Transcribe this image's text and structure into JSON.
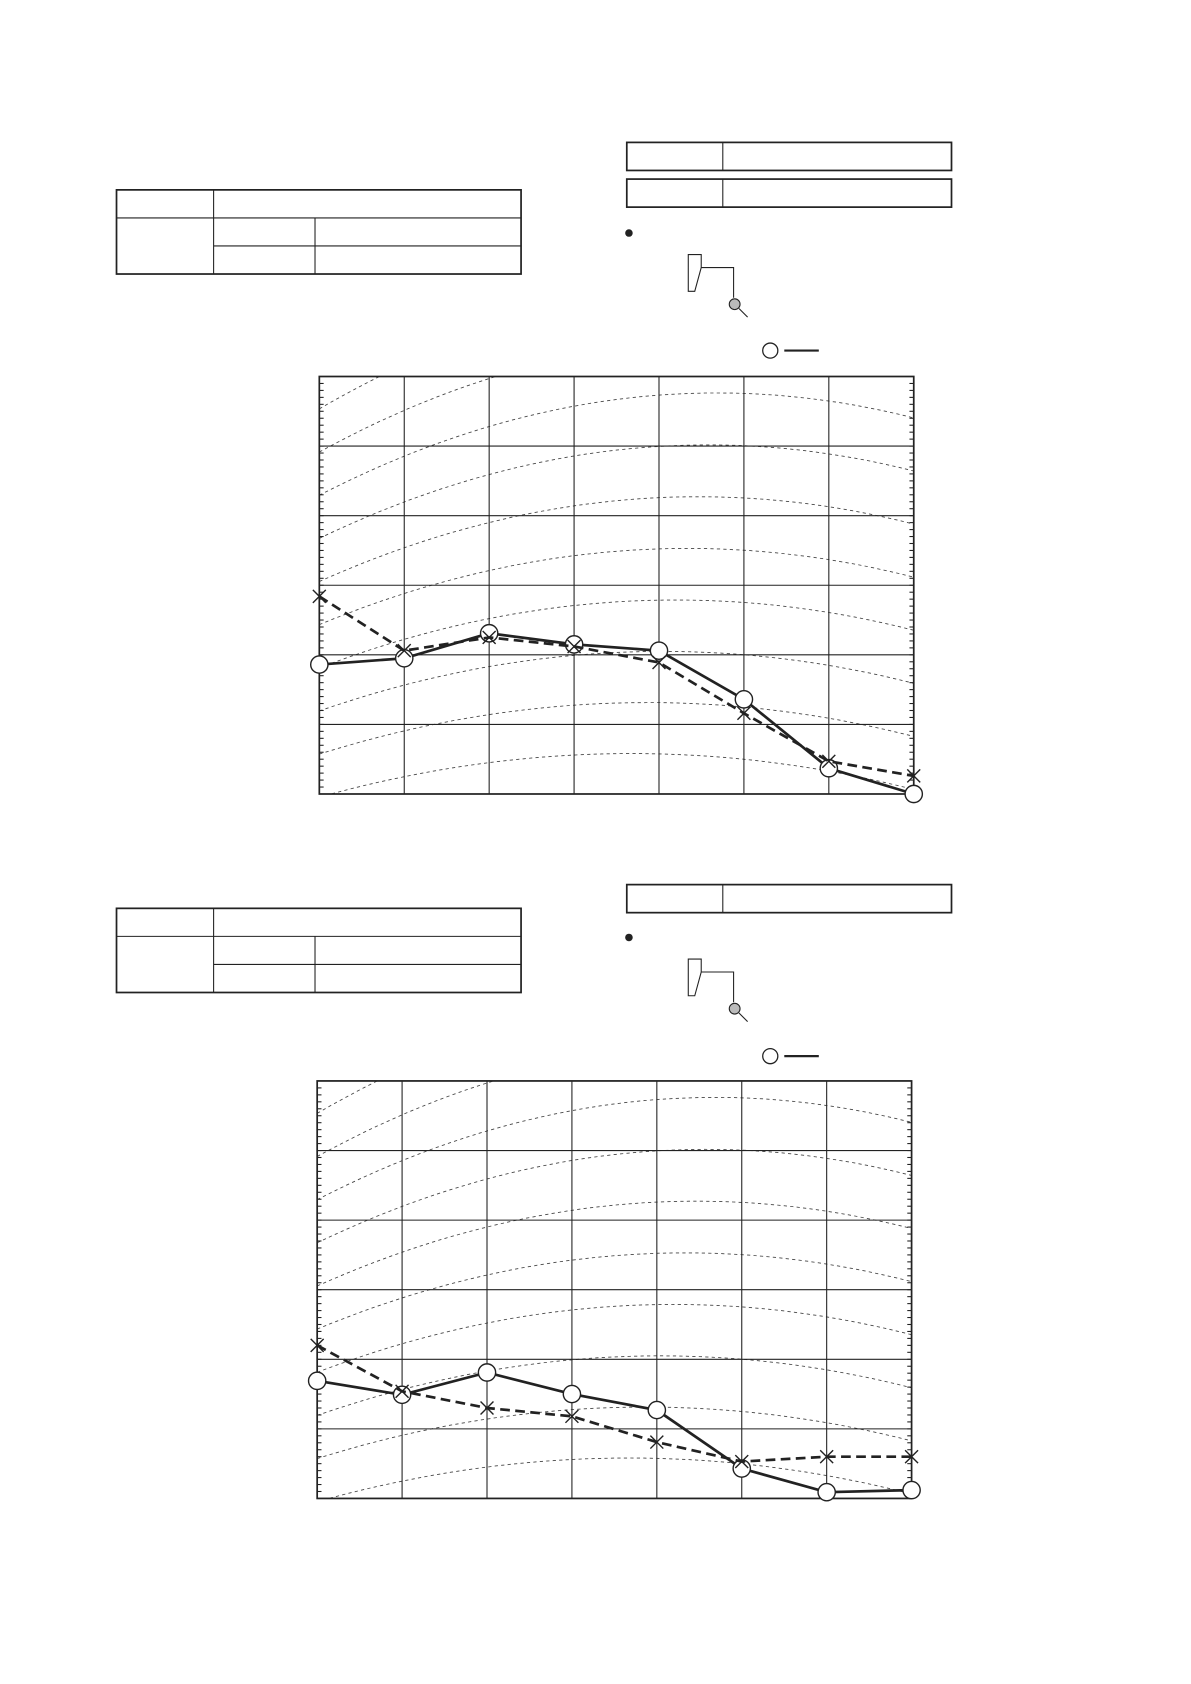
{
  "chart_data": [
    {
      "type": "line",
      "categories": [
        null,
        null,
        null,
        null,
        null,
        null,
        null,
        null
      ],
      "ylim": [
        0,
        60
      ],
      "yticks": [
        0,
        10,
        20,
        30,
        40,
        50,
        60
      ],
      "grid": true,
      "series": [
        {
          "color": "#222222",
          "marker": "circle",
          "linestyle": "solid",
          "values": [
            18.6,
            19.5,
            23.1,
            21.5,
            20.6,
            13.6,
            3.7,
            0
          ]
        },
        {
          "color": "#222222",
          "marker": "cross",
          "linestyle": "dashed",
          "values": [
            28.4,
            20.6,
            22.5,
            21.2,
            18.9,
            11.6,
            4.7,
            2.6
          ]
        }
      ]
    },
    {
      "type": "line",
      "categories": [
        null,
        null,
        null,
        null,
        null,
        null,
        null,
        null
      ],
      "ylim": [
        0,
        60
      ],
      "yticks": [
        0,
        10,
        20,
        30,
        40,
        50,
        60
      ],
      "grid": true,
      "series": [
        {
          "color": "#222222",
          "marker": "circle",
          "linestyle": "solid",
          "values": [
            16.9,
            14.9,
            18.1,
            15.0,
            12.7,
            4.3,
            0.9,
            1.2
          ]
        },
        {
          "color": "#222222",
          "marker": "cross",
          "linestyle": "dashed",
          "values": [
            22.0,
            15.4,
            13.0,
            11.8,
            8.1,
            5.3,
            6.0,
            6.0
          ]
        }
      ]
    }
  ]
}
